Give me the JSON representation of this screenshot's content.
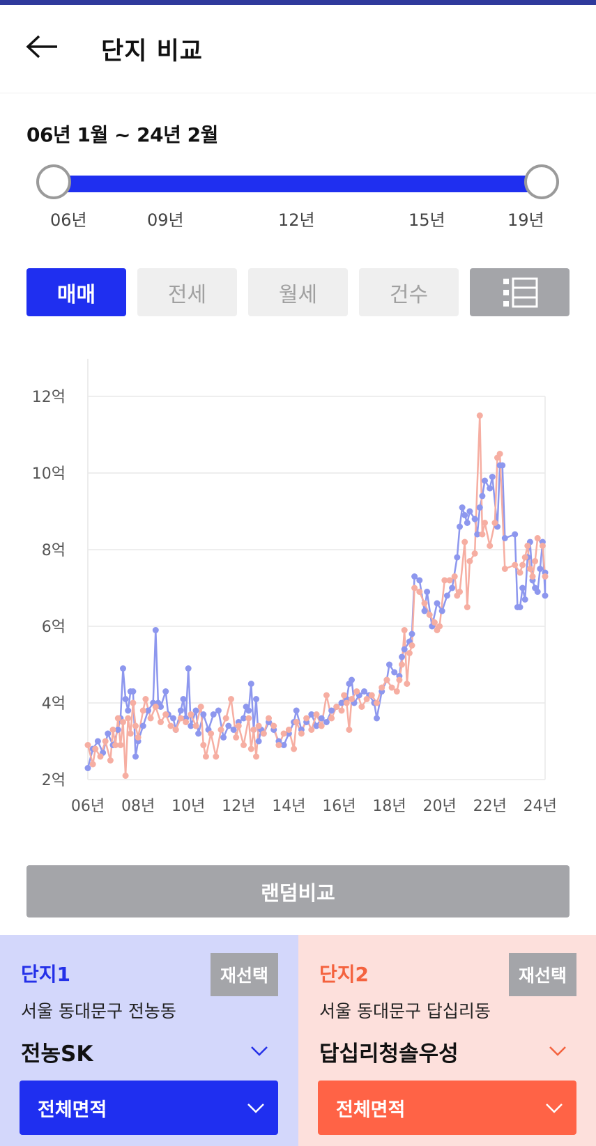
{
  "header": {
    "title": "단지 비교"
  },
  "period": {
    "range_label": "06년 1월 ~ 24년 2월",
    "ticks": [
      "06년",
      "09년",
      "12년",
      "15년",
      "19년"
    ]
  },
  "tabs": [
    {
      "label": "매매",
      "active": true
    },
    {
      "label": "전세",
      "active": false
    },
    {
      "label": "월세",
      "active": false
    },
    {
      "label": "건수",
      "active": false
    }
  ],
  "list_icon": "list-view-icon",
  "random_compare_label": "랜덤비교",
  "complex1": {
    "title": "단지1",
    "reselect_label": "재선택",
    "address": "서울 동대문구 전농동",
    "name": "전농SK",
    "area_label": "전체면적"
  },
  "complex2": {
    "title": "단지2",
    "reselect_label": "재선택",
    "address": "서울 동대문구 답십리동",
    "name": "답십리청솔우성",
    "area_label": "전체면적"
  },
  "colors": {
    "accent": "#1f2ff0",
    "series1": "#8d97ee",
    "series2": "#f6aea2",
    "complex2_accent": "#ff6346"
  },
  "chart_data": {
    "type": "line",
    "y_tick_labels": [
      "2억",
      "4억",
      "6억",
      "8억",
      "10억",
      "12억"
    ],
    "y_ticks": [
      2,
      4,
      6,
      8,
      10,
      12
    ],
    "x_tick_labels": [
      "06년",
      "08년",
      "10년",
      "12년",
      "14년",
      "16년",
      "18년",
      "20년",
      "22년",
      "24년"
    ],
    "x_ticks": [
      2006,
      2008,
      2010,
      2012,
      2014,
      2016,
      2018,
      2020,
      2022,
      2024
    ],
    "xlim": [
      2006,
      2024.2
    ],
    "ylim": [
      2,
      12
    ],
    "grid": true,
    "series": [
      {
        "color": "#8d97ee",
        "points": [
          [
            2006.0,
            2.3
          ],
          [
            2006.2,
            2.8
          ],
          [
            2006.4,
            3.0
          ],
          [
            2006.6,
            2.7
          ],
          [
            2006.8,
            3.2
          ],
          [
            2007.0,
            2.9
          ],
          [
            2007.2,
            3.3
          ],
          [
            2007.3,
            3.6
          ],
          [
            2007.4,
            4.9
          ],
          [
            2007.5,
            4.1
          ],
          [
            2007.6,
            3.8
          ],
          [
            2007.7,
            4.3
          ],
          [
            2007.8,
            4.3
          ],
          [
            2007.9,
            2.6
          ],
          [
            2008.0,
            3.0
          ],
          [
            2008.2,
            3.4
          ],
          [
            2008.4,
            3.8
          ],
          [
            2008.6,
            4.0
          ],
          [
            2008.7,
            5.9
          ],
          [
            2008.8,
            4.0
          ],
          [
            2008.9,
            3.9
          ],
          [
            2009.1,
            4.3
          ],
          [
            2009.2,
            3.7
          ],
          [
            2009.4,
            3.6
          ],
          [
            2009.5,
            3.3
          ],
          [
            2009.7,
            3.8
          ],
          [
            2009.8,
            4.1
          ],
          [
            2009.9,
            3.6
          ],
          [
            2010.0,
            4.9
          ],
          [
            2010.1,
            3.4
          ],
          [
            2010.3,
            3.8
          ],
          [
            2010.4,
            3.2
          ],
          [
            2010.6,
            3.7
          ],
          [
            2010.8,
            3.3
          ],
          [
            2011.0,
            3.7
          ],
          [
            2011.2,
            3.8
          ],
          [
            2011.4,
            3.1
          ],
          [
            2011.6,
            3.4
          ],
          [
            2011.8,
            3.3
          ],
          [
            2012.0,
            3.5
          ],
          [
            2012.2,
            3.6
          ],
          [
            2012.3,
            3.9
          ],
          [
            2012.4,
            3.8
          ],
          [
            2012.5,
            4.5
          ],
          [
            2012.6,
            3.3
          ],
          [
            2012.7,
            4.1
          ],
          [
            2012.8,
            3.0
          ],
          [
            2012.9,
            3.3
          ],
          [
            2013.0,
            3.2
          ],
          [
            2013.2,
            3.5
          ],
          [
            2013.4,
            3.3
          ],
          [
            2013.6,
            3.0
          ],
          [
            2013.8,
            2.9
          ],
          [
            2014.0,
            3.2
          ],
          [
            2014.2,
            3.5
          ],
          [
            2014.3,
            3.8
          ],
          [
            2014.5,
            3.3
          ],
          [
            2014.7,
            3.5
          ],
          [
            2014.9,
            3.7
          ],
          [
            2015.1,
            3.4
          ],
          [
            2015.3,
            3.6
          ],
          [
            2015.5,
            3.5
          ],
          [
            2015.7,
            3.8
          ],
          [
            2015.9,
            3.9
          ],
          [
            2016.1,
            4.0
          ],
          [
            2016.3,
            4.1
          ],
          [
            2016.4,
            4.5
          ],
          [
            2016.5,
            4.6
          ],
          [
            2016.6,
            4.0
          ],
          [
            2016.8,
            4.2
          ],
          [
            2017.0,
            4.3
          ],
          [
            2017.2,
            4.2
          ],
          [
            2017.4,
            4.0
          ],
          [
            2017.5,
            3.6
          ],
          [
            2017.7,
            4.3
          ],
          [
            2017.9,
            4.6
          ],
          [
            2018.0,
            5.0
          ],
          [
            2018.2,
            4.8
          ],
          [
            2018.4,
            4.7
          ],
          [
            2018.5,
            5.2
          ],
          [
            2018.6,
            5.4
          ],
          [
            2018.8,
            5.6
          ],
          [
            2018.9,
            5.8
          ],
          [
            2019.0,
            7.3
          ],
          [
            2019.2,
            7.2
          ],
          [
            2019.4,
            6.4
          ],
          [
            2019.5,
            6.9
          ],
          [
            2019.7,
            6.0
          ],
          [
            2019.9,
            6.6
          ],
          [
            2020.1,
            6.4
          ],
          [
            2020.3,
            6.8
          ],
          [
            2020.5,
            7.0
          ],
          [
            2020.7,
            7.8
          ],
          [
            2020.8,
            8.6
          ],
          [
            2020.9,
            9.1
          ],
          [
            2021.0,
            8.9
          ],
          [
            2021.1,
            8.7
          ],
          [
            2021.2,
            9.0
          ],
          [
            2021.4,
            8.8
          ],
          [
            2021.5,
            8.4
          ],
          [
            2021.6,
            9.1
          ],
          [
            2021.7,
            9.4
          ],
          [
            2021.8,
            9.8
          ],
          [
            2022.0,
            9.6
          ],
          [
            2022.1,
            9.9
          ],
          [
            2022.3,
            8.6
          ],
          [
            2022.4,
            10.2
          ],
          [
            2022.5,
            10.2
          ],
          [
            2022.6,
            8.3
          ],
          [
            2023.0,
            8.4
          ],
          [
            2023.1,
            6.5
          ],
          [
            2023.2,
            6.5
          ],
          [
            2023.3,
            7.0
          ],
          [
            2023.4,
            6.7
          ],
          [
            2023.5,
            7.8
          ],
          [
            2023.6,
            8.2
          ],
          [
            2023.7,
            7.2
          ],
          [
            2023.8,
            7.0
          ],
          [
            2023.9,
            6.9
          ],
          [
            2024.0,
            7.5
          ],
          [
            2024.1,
            8.2
          ],
          [
            2024.2,
            6.8
          ],
          [
            2024.2,
            7.4
          ]
        ]
      },
      {
        "color": "#f6aea2",
        "points": [
          [
            2006.0,
            2.9
          ],
          [
            2006.2,
            2.4
          ],
          [
            2006.3,
            2.8
          ],
          [
            2006.5,
            2.6
          ],
          [
            2006.7,
            3.0
          ],
          [
            2006.9,
            2.5
          ],
          [
            2007.0,
            3.3
          ],
          [
            2007.1,
            2.9
          ],
          [
            2007.2,
            3.6
          ],
          [
            2007.3,
            2.9
          ],
          [
            2007.4,
            3.5
          ],
          [
            2007.5,
            2.1
          ],
          [
            2007.6,
            3.6
          ],
          [
            2007.7,
            3.2
          ],
          [
            2007.8,
            4.0
          ],
          [
            2007.9,
            3.4
          ],
          [
            2008.0,
            3.1
          ],
          [
            2008.2,
            3.8
          ],
          [
            2008.3,
            4.1
          ],
          [
            2008.5,
            3.6
          ],
          [
            2008.7,
            3.9
          ],
          [
            2008.9,
            3.5
          ],
          [
            2009.1,
            3.7
          ],
          [
            2009.3,
            3.4
          ],
          [
            2009.5,
            3.3
          ],
          [
            2009.7,
            3.6
          ],
          [
            2009.9,
            3.5
          ],
          [
            2010.1,
            3.7
          ],
          [
            2010.3,
            3.4
          ],
          [
            2010.5,
            3.9
          ],
          [
            2010.6,
            2.9
          ],
          [
            2010.7,
            2.6
          ],
          [
            2010.9,
            3.2
          ],
          [
            2011.1,
            2.6
          ],
          [
            2011.3,
            3.3
          ],
          [
            2011.5,
            3.6
          ],
          [
            2011.7,
            4.1
          ],
          [
            2011.9,
            3.1
          ],
          [
            2012.0,
            3.4
          ],
          [
            2012.2,
            2.9
          ],
          [
            2012.4,
            3.6
          ],
          [
            2012.5,
            2.8
          ],
          [
            2012.6,
            3.3
          ],
          [
            2012.7,
            2.6
          ],
          [
            2012.8,
            3.4
          ],
          [
            2013.0,
            3.2
          ],
          [
            2013.2,
            3.6
          ],
          [
            2013.4,
            3.4
          ],
          [
            2013.6,
            2.9
          ],
          [
            2013.8,
            3.2
          ],
          [
            2014.0,
            3.3
          ],
          [
            2014.2,
            2.8
          ],
          [
            2014.3,
            3.5
          ],
          [
            2014.5,
            3.2
          ],
          [
            2014.7,
            3.6
          ],
          [
            2014.9,
            3.3
          ],
          [
            2015.1,
            3.7
          ],
          [
            2015.3,
            3.4
          ],
          [
            2015.5,
            4.2
          ],
          [
            2015.7,
            3.6
          ],
          [
            2015.9,
            3.9
          ],
          [
            2016.1,
            3.8
          ],
          [
            2016.2,
            4.2
          ],
          [
            2016.3,
            4.0
          ],
          [
            2016.4,
            3.3
          ],
          [
            2016.5,
            4.1
          ],
          [
            2016.7,
            4.3
          ],
          [
            2016.9,
            3.9
          ],
          [
            2017.1,
            4.1
          ],
          [
            2017.3,
            4.2
          ],
          [
            2017.5,
            4.0
          ],
          [
            2017.7,
            4.4
          ],
          [
            2017.9,
            4.6
          ],
          [
            2018.1,
            4.4
          ],
          [
            2018.3,
            4.3
          ],
          [
            2018.4,
            4.6
          ],
          [
            2018.5,
            5.0
          ],
          [
            2018.6,
            5.9
          ],
          [
            2018.7,
            4.5
          ],
          [
            2018.8,
            5.3
          ],
          [
            2018.9,
            5.5
          ],
          [
            2019.0,
            7.0
          ],
          [
            2019.2,
            6.9
          ],
          [
            2019.4,
            6.6
          ],
          [
            2019.6,
            6.3
          ],
          [
            2019.8,
            6.1
          ],
          [
            2019.9,
            5.9
          ],
          [
            2020.0,
            6.0
          ],
          [
            2020.2,
            7.2
          ],
          [
            2020.4,
            7.2
          ],
          [
            2020.6,
            7.3
          ],
          [
            2020.7,
            6.8
          ],
          [
            2020.8,
            6.9
          ],
          [
            2021.0,
            8.2
          ],
          [
            2021.1,
            6.5
          ],
          [
            2021.2,
            7.7
          ],
          [
            2021.4,
            7.9
          ],
          [
            2021.6,
            11.5
          ],
          [
            2021.7,
            8.4
          ],
          [
            2021.8,
            8.7
          ],
          [
            2022.0,
            8.1
          ],
          [
            2022.2,
            8.7
          ],
          [
            2022.3,
            10.4
          ],
          [
            2022.4,
            10.5
          ],
          [
            2022.6,
            7.5
          ],
          [
            2023.0,
            7.6
          ],
          [
            2023.2,
            7.4
          ],
          [
            2023.3,
            7.6
          ],
          [
            2023.4,
            7.8
          ],
          [
            2023.5,
            8.1
          ],
          [
            2023.6,
            7.5
          ],
          [
            2023.7,
            7.3
          ],
          [
            2023.8,
            7.7
          ],
          [
            2023.9,
            8.3
          ],
          [
            2024.1,
            8.1
          ],
          [
            2024.2,
            7.3
          ]
        ]
      }
    ]
  }
}
